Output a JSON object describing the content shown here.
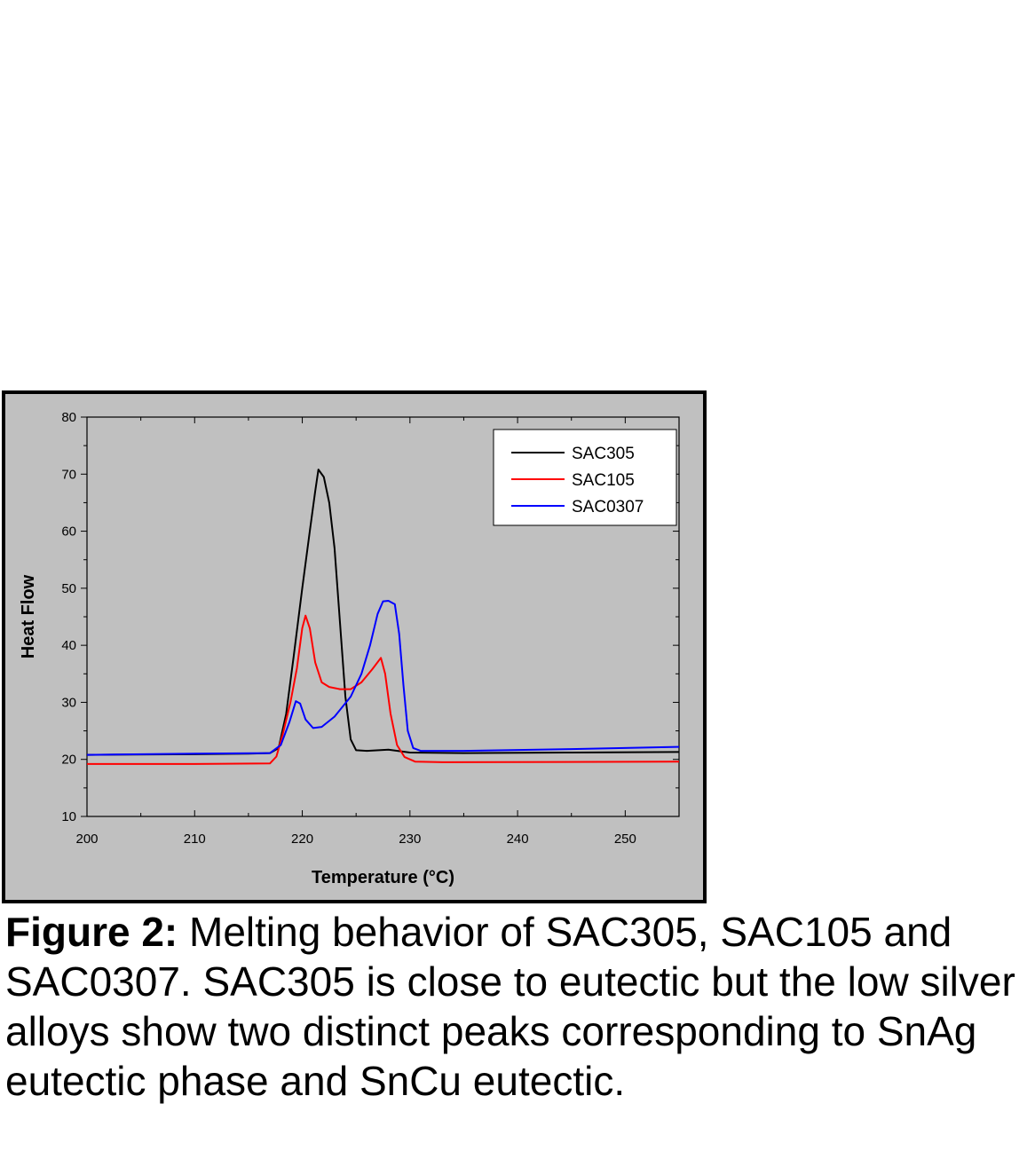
{
  "chart_data": {
    "type": "line",
    "xlabel": "Temperature (°C)",
    "ylabel": "Heat Flow",
    "xlim": [
      200,
      255
    ],
    "ylim": [
      10,
      80
    ],
    "x_ticks": [
      200,
      210,
      220,
      230,
      240,
      250
    ],
    "y_ticks": [
      10,
      20,
      30,
      40,
      50,
      60,
      70,
      80
    ],
    "plot_background": "#c0c0c0",
    "frame_color": "#000000",
    "grid": false,
    "legend_position": "top-right",
    "series": [
      {
        "name": "SAC305",
        "color": "#000000",
        "points": [
          [
            200,
            20.8
          ],
          [
            210,
            20.9
          ],
          [
            215,
            21.0
          ],
          [
            217,
            21.1
          ],
          [
            217.8,
            22.0
          ],
          [
            218.5,
            28
          ],
          [
            219.2,
            38
          ],
          [
            220,
            50
          ],
          [
            220.7,
            60
          ],
          [
            221.2,
            67
          ],
          [
            221.5,
            70.8
          ],
          [
            222.0,
            69.5
          ],
          [
            222.5,
            65
          ],
          [
            223.0,
            57
          ],
          [
            223.5,
            44
          ],
          [
            224.0,
            31
          ],
          [
            224.5,
            23.5
          ],
          [
            225.0,
            21.6
          ],
          [
            226,
            21.5
          ],
          [
            228,
            21.7
          ],
          [
            230,
            21.2
          ],
          [
            235,
            21.1
          ],
          [
            245,
            21.2
          ],
          [
            255,
            21.3
          ]
        ]
      },
      {
        "name": "SAC105",
        "color": "#ff0000",
        "points": [
          [
            200,
            19.2
          ],
          [
            210,
            19.2
          ],
          [
            217,
            19.3
          ],
          [
            217.6,
            20.5
          ],
          [
            218.2,
            24.5
          ],
          [
            218.9,
            30
          ],
          [
            219.5,
            36
          ],
          [
            220.0,
            43
          ],
          [
            220.3,
            45.2
          ],
          [
            220.7,
            43
          ],
          [
            221.2,
            37
          ],
          [
            221.8,
            33.5
          ],
          [
            222.5,
            32.7
          ],
          [
            223.5,
            32.3
          ],
          [
            224.5,
            32.3
          ],
          [
            225.5,
            33.5
          ],
          [
            226.5,
            35.8
          ],
          [
            227.3,
            37.8
          ],
          [
            227.7,
            35
          ],
          [
            228.2,
            28
          ],
          [
            228.8,
            22.5
          ],
          [
            229.5,
            20.4
          ],
          [
            230.5,
            19.6
          ],
          [
            233,
            19.5
          ],
          [
            255,
            19.6
          ]
        ]
      },
      {
        "name": "SAC0307",
        "color": "#0000ff",
        "points": [
          [
            200,
            20.8
          ],
          [
            210,
            21.0
          ],
          [
            217,
            21.1
          ],
          [
            218,
            22.5
          ],
          [
            218.8,
            26.5
          ],
          [
            219.4,
            30.2
          ],
          [
            219.8,
            29.8
          ],
          [
            220.3,
            27
          ],
          [
            221,
            25.5
          ],
          [
            221.8,
            25.7
          ],
          [
            223,
            27.5
          ],
          [
            224.5,
            31
          ],
          [
            225.5,
            35
          ],
          [
            226.3,
            40
          ],
          [
            227.0,
            45.5
          ],
          [
            227.5,
            47.7
          ],
          [
            228.0,
            47.8
          ],
          [
            228.6,
            47.2
          ],
          [
            229.0,
            42
          ],
          [
            229.4,
            33
          ],
          [
            229.8,
            25
          ],
          [
            230.3,
            22.0
          ],
          [
            231,
            21.5
          ],
          [
            235,
            21.5
          ],
          [
            245,
            21.8
          ],
          [
            255,
            22.2
          ]
        ]
      }
    ]
  },
  "caption": {
    "lead": "Figure 2:",
    "text": "  Melting behavior of SAC305, SAC105 and SAC0307.  SAC305 is close to eutectic but the low silver alloys show two distinct peaks corresponding to SnAg eutectic phase and SnCu eutectic."
  }
}
